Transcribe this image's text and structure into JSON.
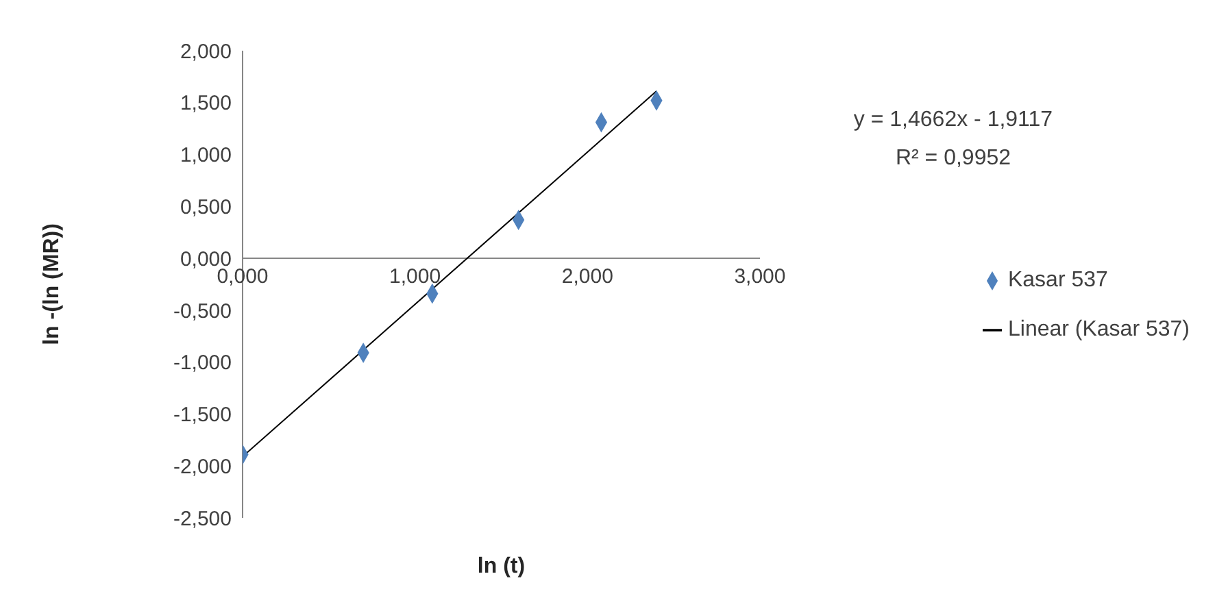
{
  "chart_data": {
    "type": "scatter",
    "xlabel": "ln (t)",
    "ylabel": "ln -(ln (MR))",
    "series": [
      {
        "name": "Kasar 537",
        "type": "scatter",
        "color": "#4f81bd",
        "marker": "diamond",
        "x": [
          0,
          0.7,
          1.1,
          1.6,
          2.08,
          2.4
        ],
        "values": [
          -1.89,
          -0.91,
          -0.34,
          0.37,
          1.31,
          1.52
        ]
      },
      {
        "name": "Linear (Kasar 537)",
        "type": "line",
        "color": "#000000",
        "marker": "none",
        "x": [
          0,
          2.4
        ],
        "values": [
          -1.91,
          1.61
        ]
      }
    ],
    "xlim": [
      0,
      3
    ],
    "xticks": [
      {
        "value": 0,
        "label": "0,000"
      },
      {
        "value": 1,
        "label": "1,000"
      },
      {
        "value": 2,
        "label": "2,000"
      },
      {
        "value": 3,
        "label": "3,000"
      }
    ],
    "ylim": [
      -2.5,
      2
    ],
    "yticks": [
      {
        "value": -2.5,
        "label": "-2,500"
      },
      {
        "value": -2,
        "label": "-2,000"
      },
      {
        "value": -1.5,
        "label": "-1,500"
      },
      {
        "value": -1,
        "label": "-1,000"
      },
      {
        "value": -0.5,
        "label": "-0,500"
      },
      {
        "value": 0,
        "label": "0,000"
      },
      {
        "value": 0.5,
        "label": "0,500"
      },
      {
        "value": 1,
        "label": "1,000"
      },
      {
        "value": 1.5,
        "label": "1,500"
      },
      {
        "value": 2,
        "label": "2,000"
      }
    ],
    "grid": false,
    "legend": "right",
    "annotations": [
      "y = 1,4662x - 1,9117",
      "R² = 0,9952"
    ]
  }
}
